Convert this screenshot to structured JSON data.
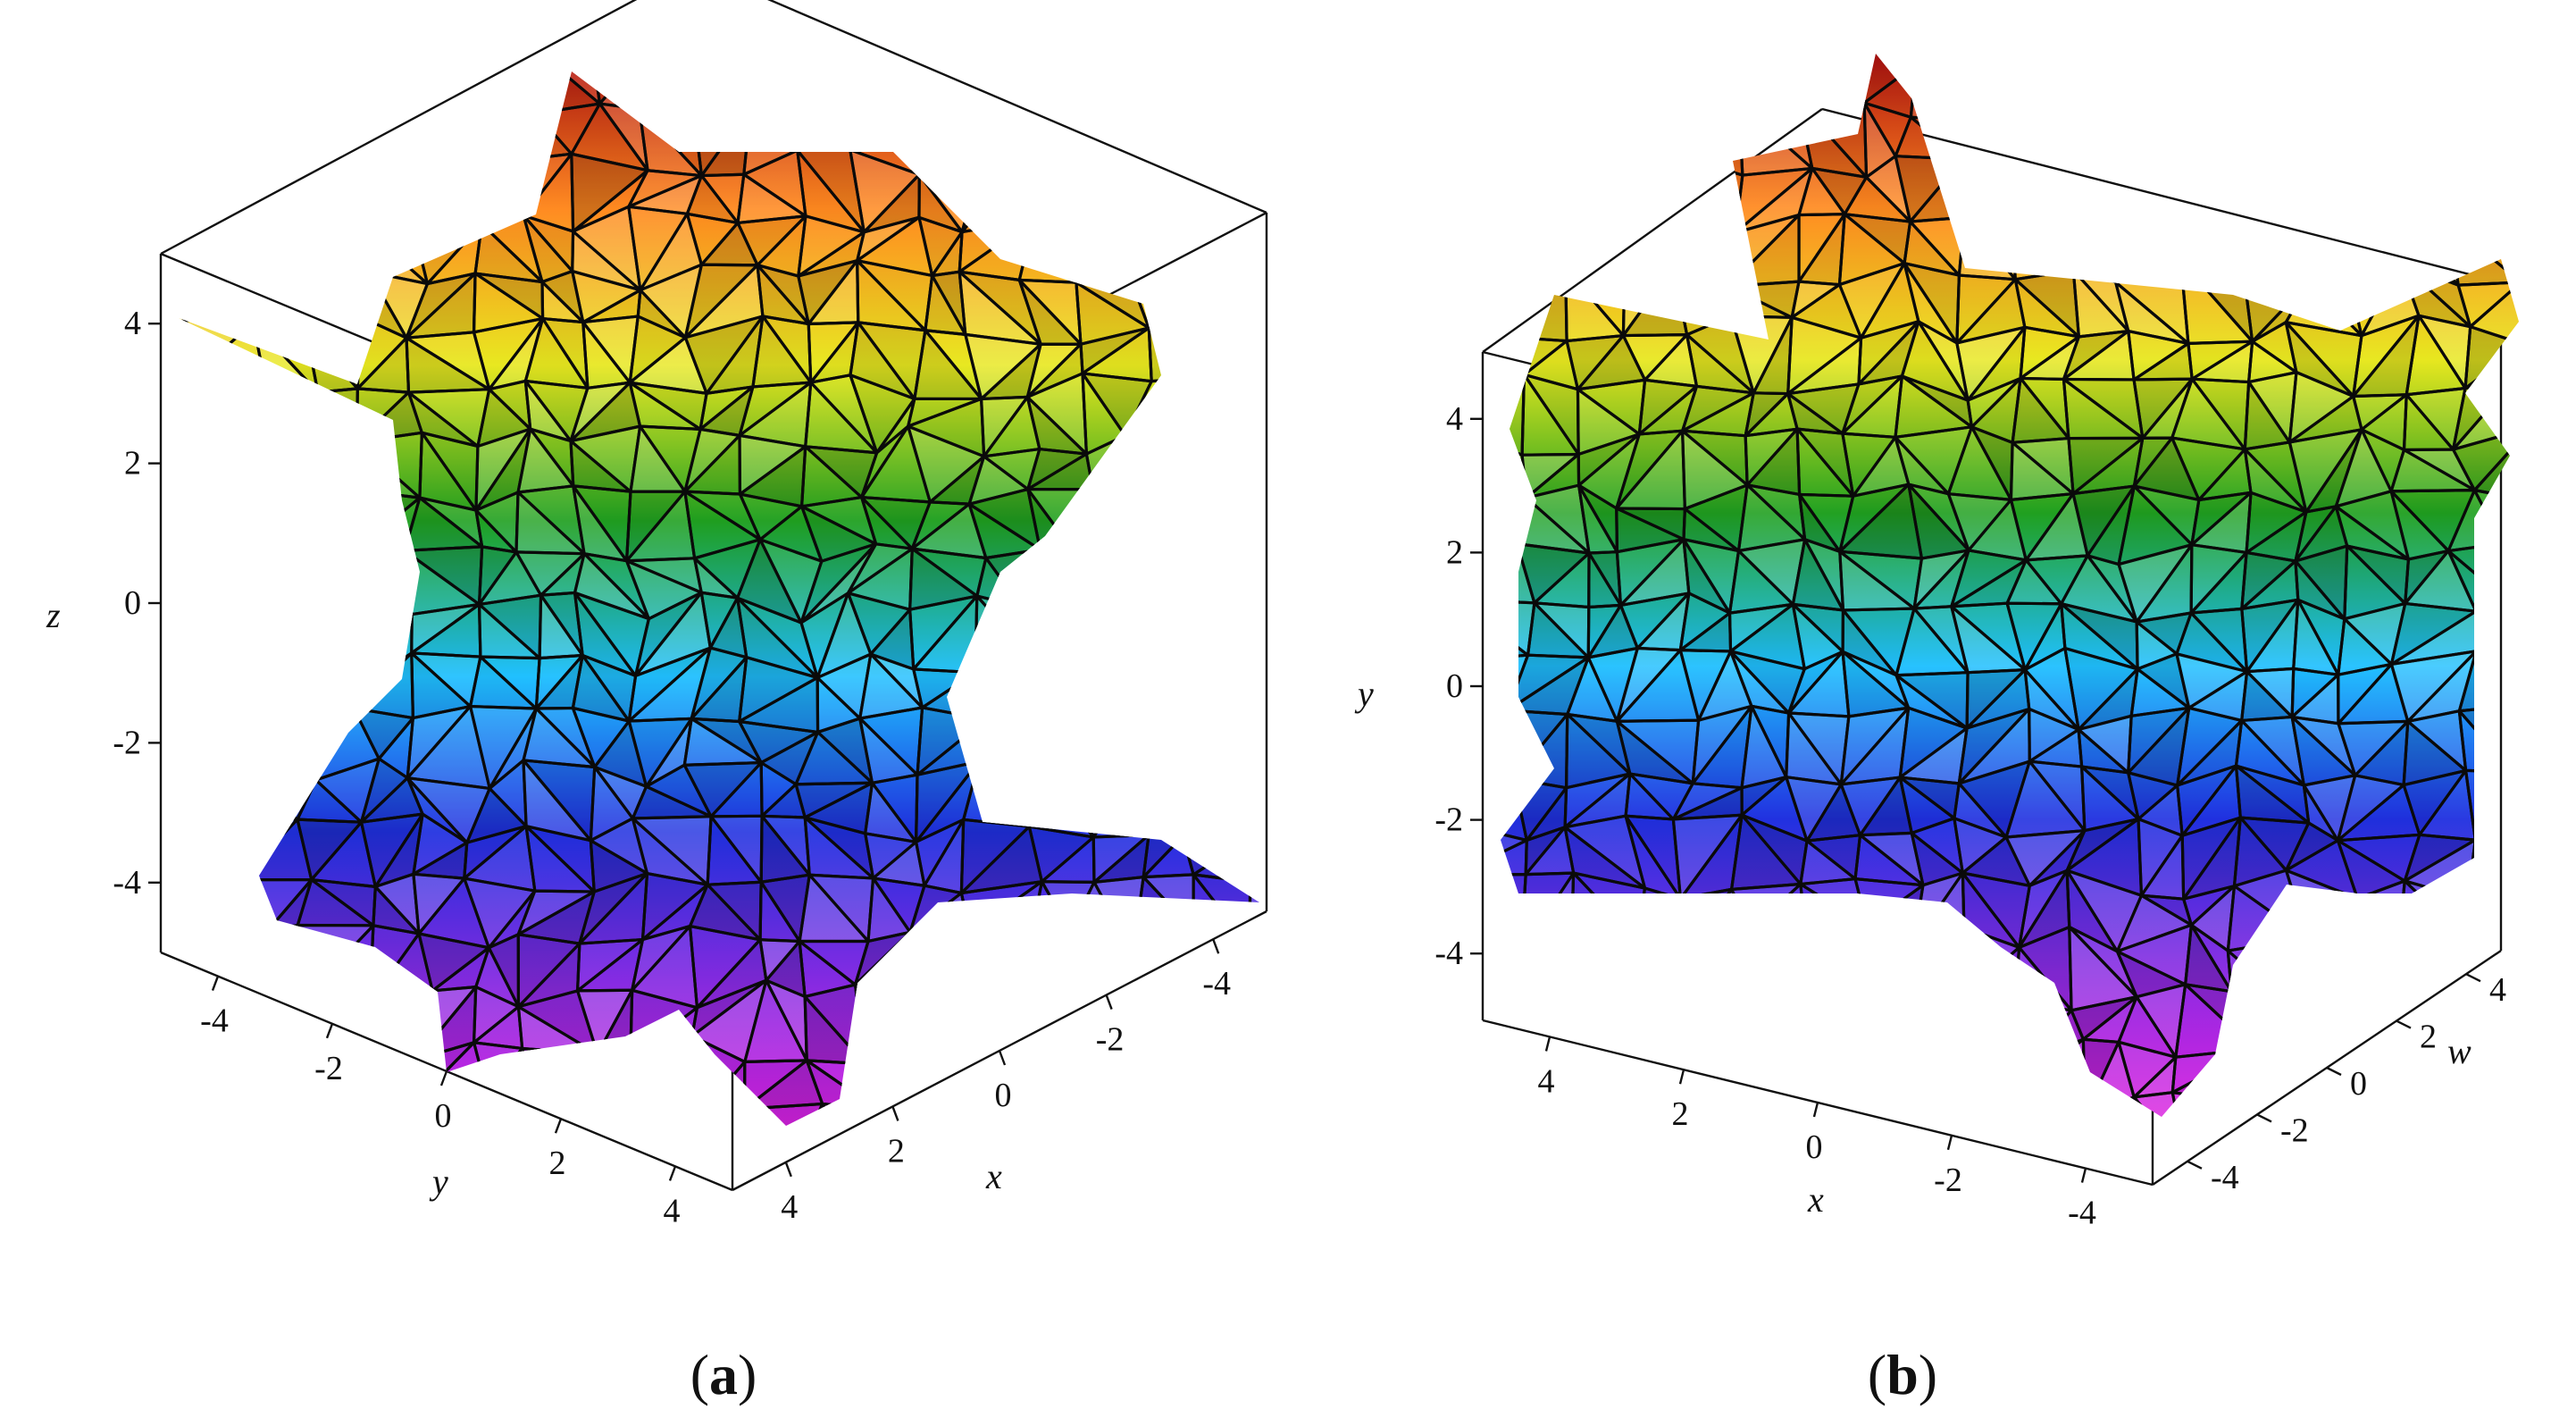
{
  "chart_data": [
    {
      "type": "surface3d",
      "panel_label": "(a)",
      "panel_letter": "a",
      "axes": {
        "x": {
          "label": "x",
          "range": [
            -5,
            5
          ],
          "ticks": [
            4,
            2,
            0,
            -2,
            -4
          ],
          "ticklabels": [
            "4",
            "2",
            "0",
            "-2",
            "-4"
          ]
        },
        "y": {
          "label": "y",
          "range": [
            -5,
            5
          ],
          "ticks": [
            -4,
            -2,
            0,
            2,
            4
          ],
          "ticklabels": [
            "-4",
            "-2",
            "0",
            "2",
            "4"
          ]
        },
        "z": {
          "label": "z",
          "range": [
            -5,
            5
          ],
          "ticks": [
            4,
            2,
            0,
            -2,
            -4
          ],
          "ticklabels": [
            "4",
            "2",
            "0",
            "-2",
            "-4"
          ]
        }
      },
      "colormap": [
        "#e020e0",
        "#8a2be2",
        "#2030e0",
        "#20c0ff",
        "#20a020",
        "#e8e820",
        "#ff8a20",
        "#b01010"
      ],
      "grid": false,
      "box": true
    },
    {
      "type": "surface3d",
      "panel_label": "(b)",
      "panel_letter": "b",
      "axes": {
        "x": {
          "label": "x",
          "range": [
            -5,
            5
          ],
          "ticks": [
            4,
            2,
            0,
            -2,
            -4
          ],
          "ticklabels": [
            "4",
            "2",
            "0",
            "-2",
            "-4"
          ]
        },
        "w": {
          "label": "w",
          "range": [
            -5,
            5
          ],
          "ticks": [
            4,
            2,
            0,
            -2,
            -4
          ],
          "ticklabels": [
            "4",
            "2",
            "0",
            "-2",
            "-4"
          ]
        },
        "y": {
          "label": "y",
          "range": [
            -5,
            5
          ],
          "ticks": [
            4,
            2,
            0,
            -2,
            -4
          ],
          "ticklabels": [
            "4",
            "2",
            "0",
            "-2",
            "-4"
          ]
        }
      },
      "colormap": [
        "#e020e0",
        "#8a2be2",
        "#2030e0",
        "#20c0ff",
        "#20a020",
        "#e8e820",
        "#ff8a20",
        "#b01010"
      ],
      "grid": false,
      "box": true
    }
  ]
}
